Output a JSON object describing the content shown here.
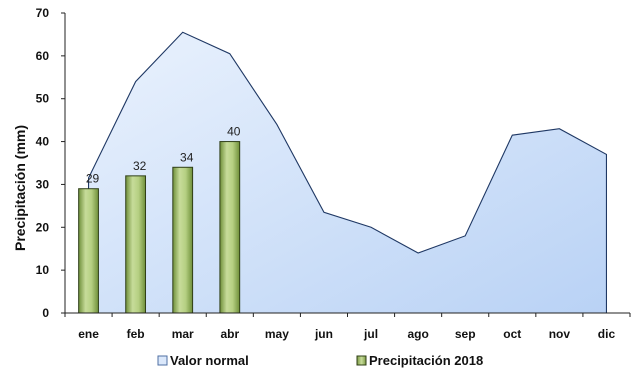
{
  "chart_data": {
    "type": "bar+area",
    "title": "",
    "xlabel": "",
    "ylabel": "Precipitación (mm)",
    "ylim": [
      0,
      70
    ],
    "yticks": [
      0,
      10,
      20,
      30,
      40,
      50,
      60,
      70
    ],
    "grid": false,
    "legend_position": "bottom",
    "categories": [
      "ene",
      "feb",
      "mar",
      "abr",
      "may",
      "jun",
      "jul",
      "ago",
      "sep",
      "oct",
      "nov",
      "dic"
    ],
    "series": [
      {
        "name": "Valor normal",
        "kind": "area",
        "color": "#c9dcf8",
        "values": [
          31.5,
          54,
          65.5,
          60.5,
          44,
          23.5,
          20,
          14,
          18,
          41.5,
          43,
          37
        ]
      },
      {
        "name": "Precipitación 2018",
        "kind": "bar",
        "color": "#93b35b",
        "values": [
          29,
          32,
          34,
          40,
          null,
          null,
          null,
          null,
          null,
          null,
          null,
          null
        ],
        "data_labels": [
          "29",
          "32",
          "34",
          "40"
        ]
      }
    ]
  }
}
